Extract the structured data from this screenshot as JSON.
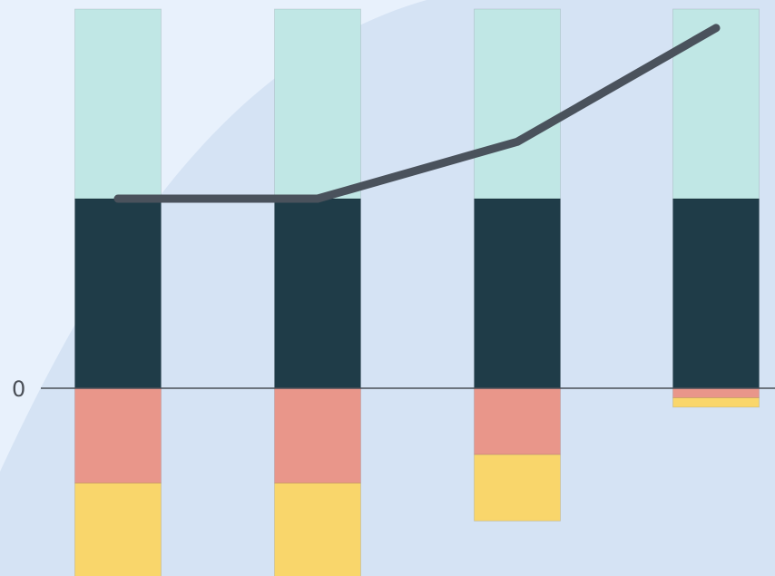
{
  "chart_data": {
    "type": "bar",
    "stacked": true,
    "categories": [
      "",
      "",
      "",
      ""
    ],
    "series": [
      {
        "kind": "bar",
        "color": "#e9968a",
        "values": [
          -1,
          -1,
          -0.7,
          -0.1
        ]
      },
      {
        "kind": "bar",
        "color": "#f9d66b",
        "values": [
          -1,
          -1,
          -0.7,
          -0.1
        ]
      },
      {
        "kind": "bar",
        "color": "#1f3c48",
        "values": [
          2,
          2,
          2,
          2
        ]
      },
      {
        "kind": "bar",
        "color": "#c0e7e5",
        "values": [
          2,
          2,
          2,
          2
        ]
      },
      {
        "kind": "line",
        "color": "#4a525c",
        "values": [
          2,
          2,
          2.6,
          3.8
        ]
      }
    ],
    "zero_label": "0",
    "ylim": [
      -2,
      4.1
    ],
    "grid": false,
    "legend": "none",
    "background_colors": [
      "#e8f1fc",
      "#d5e3f4"
    ],
    "axis_color": "#4a4f57"
  }
}
